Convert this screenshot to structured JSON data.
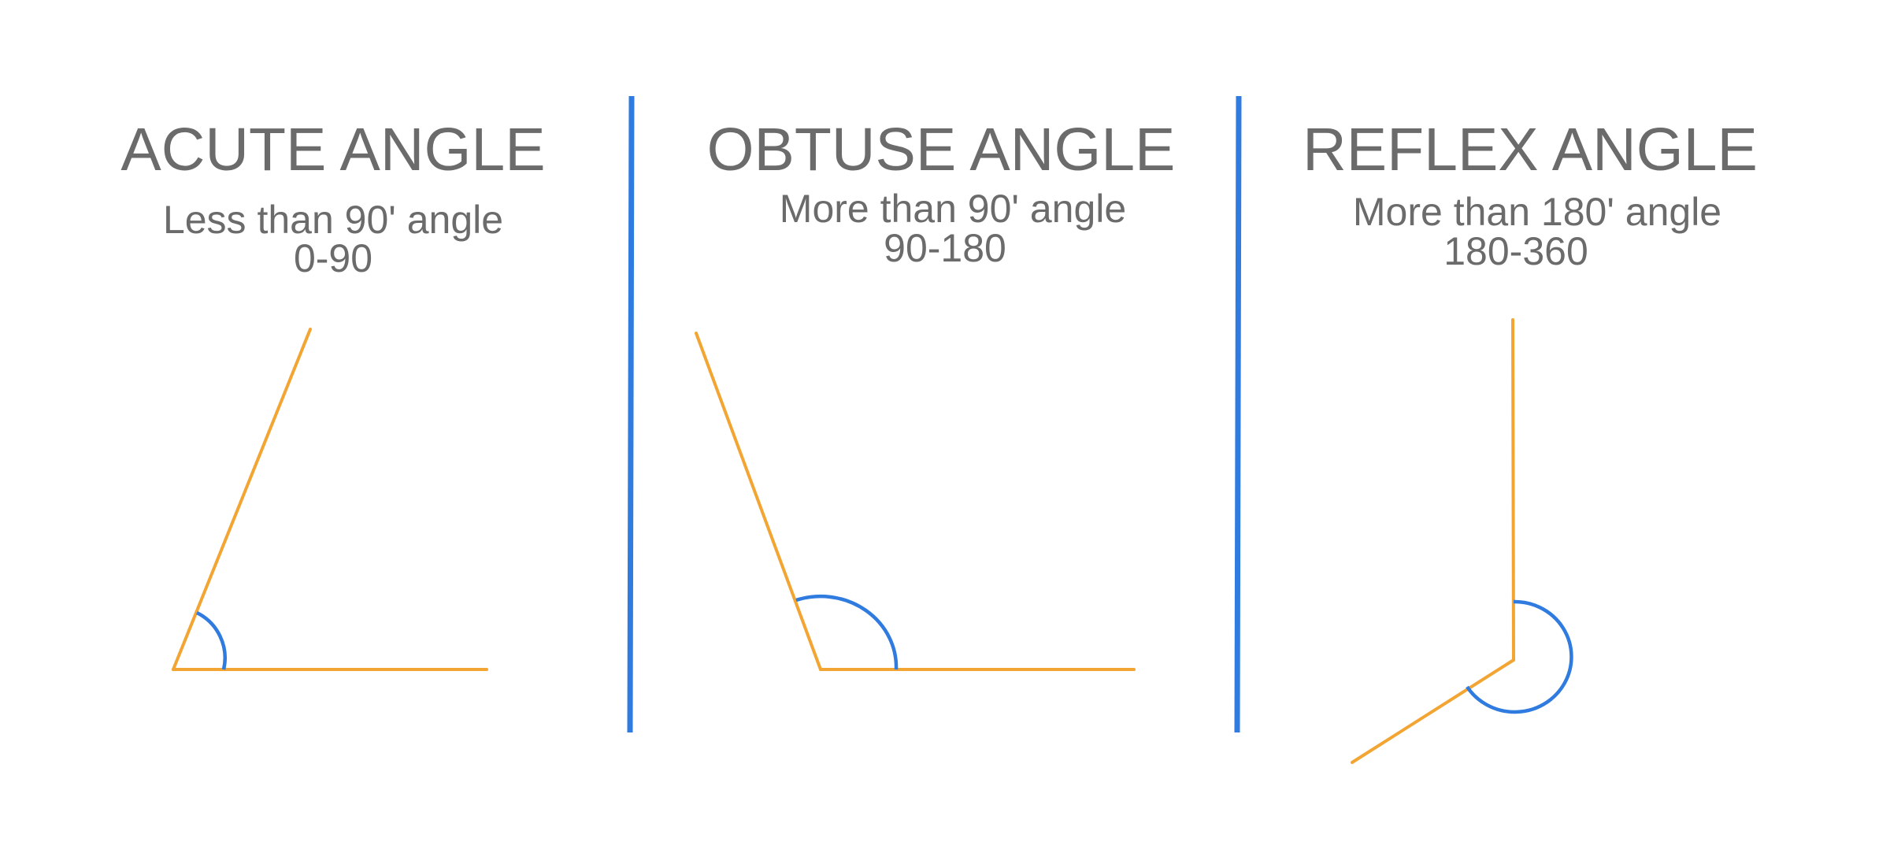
{
  "colors": {
    "arm": "#f3a533",
    "arc": "#2f7be0",
    "divider": "#2f7be0",
    "text": "#6b6b6b",
    "background": "#ffffff"
  },
  "panels": [
    {
      "title": "ACUTE ANGLE",
      "description": "Less than 90' angle",
      "range": "0-90"
    },
    {
      "title": "OBTUSE ANGLE",
      "description": "More than 90' angle",
      "range": "90-180"
    },
    {
      "title": "REFLEX ANGLE",
      "description": "More than 180' angle",
      "range": "180-360"
    }
  ]
}
